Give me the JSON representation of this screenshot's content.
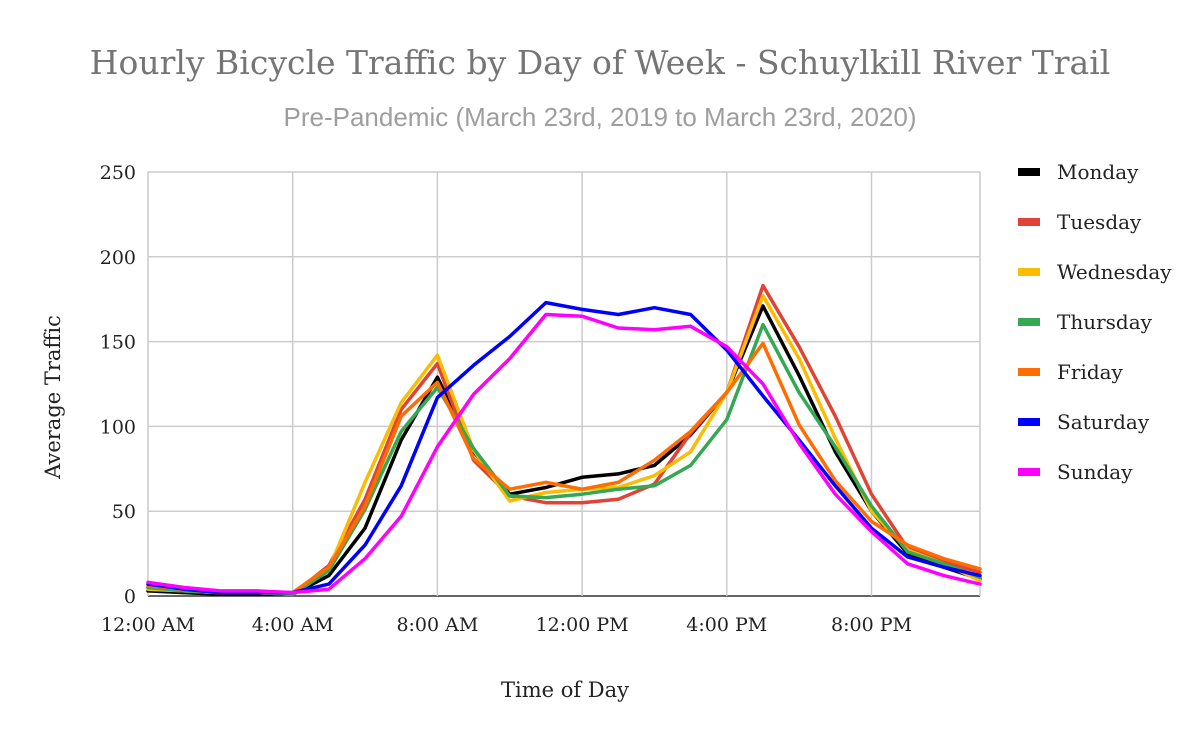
{
  "chart_data": {
    "type": "line",
    "title": "Hourly Bicycle Traffic by Day of Week - Schuylkill River Trail",
    "subtitle": "Pre-Pandemic (March 23rd, 2019 to March 23rd, 2020)",
    "xlabel": "Time of Day",
    "ylabel": "Average Traffic",
    "x": [
      0,
      1,
      2,
      3,
      4,
      5,
      6,
      7,
      8,
      9,
      10,
      11,
      12,
      13,
      14,
      15,
      16,
      17,
      18,
      19,
      20,
      21,
      22,
      23
    ],
    "xlim": [
      0,
      23
    ],
    "ylim": [
      0,
      250
    ],
    "x_ticks": [
      {
        "hour": 0,
        "label": "12:00 AM"
      },
      {
        "hour": 4,
        "label": "4:00 AM"
      },
      {
        "hour": 8,
        "label": "8:00 AM"
      },
      {
        "hour": 12,
        "label": "12:00 PM"
      },
      {
        "hour": 16,
        "label": "4:00 PM"
      },
      {
        "hour": 20,
        "label": "8:00 PM"
      }
    ],
    "y_ticks": [
      0,
      50,
      100,
      150,
      200,
      250
    ],
    "grid": true,
    "legend_position": "right",
    "series": [
      {
        "name": "Monday",
        "color": "#000000",
        "values": [
          3,
          2,
          1,
          1,
          1,
          12,
          40,
          92,
          129,
          85,
          60,
          64,
          70,
          72,
          77,
          95,
          120,
          171,
          130,
          85,
          50,
          25,
          17,
          10
        ]
      },
      {
        "name": "Tuesday",
        "color": "#e04436",
        "values": [
          5,
          3,
          2,
          2,
          1,
          18,
          57,
          110,
          137,
          80,
          59,
          55,
          55,
          57,
          66,
          96,
          120,
          183,
          147,
          106,
          60,
          28,
          20,
          14
        ]
      },
      {
        "name": "Wednesday",
        "color": "#fbbc04",
        "values": [
          4,
          3,
          2,
          2,
          1,
          16,
          67,
          114,
          142,
          86,
          56,
          61,
          63,
          64,
          71,
          85,
          120,
          177,
          140,
          93,
          50,
          27,
          19,
          9
        ]
      },
      {
        "name": "Thursday",
        "color": "#34a853",
        "values": [
          5,
          3,
          2,
          2,
          1,
          15,
          51,
          97,
          123,
          87,
          59,
          58,
          60,
          63,
          65,
          77,
          104,
          160,
          120,
          88,
          53,
          26,
          19,
          11
        ]
      },
      {
        "name": "Friday",
        "color": "#ff6d01",
        "values": [
          6,
          4,
          2,
          2,
          2,
          17,
          53,
          106,
          126,
          81,
          63,
          67,
          63,
          67,
          80,
          97,
          120,
          149,
          101,
          68,
          44,
          30,
          22,
          16
        ]
      },
      {
        "name": "Saturday",
        "color": "#0000ff",
        "values": [
          7,
          4,
          2,
          2,
          2,
          7,
          30,
          65,
          117,
          136,
          153,
          173,
          169,
          166,
          170,
          166,
          145,
          118,
          92,
          65,
          40,
          23,
          17,
          12
        ]
      },
      {
        "name": "Sunday",
        "color": "#ff00ff",
        "values": [
          8,
          5,
          3,
          3,
          2,
          4,
          22,
          47,
          88,
          119,
          140,
          166,
          165,
          158,
          157,
          159,
          147,
          125,
          90,
          60,
          38,
          19,
          12,
          7
        ]
      }
    ]
  }
}
